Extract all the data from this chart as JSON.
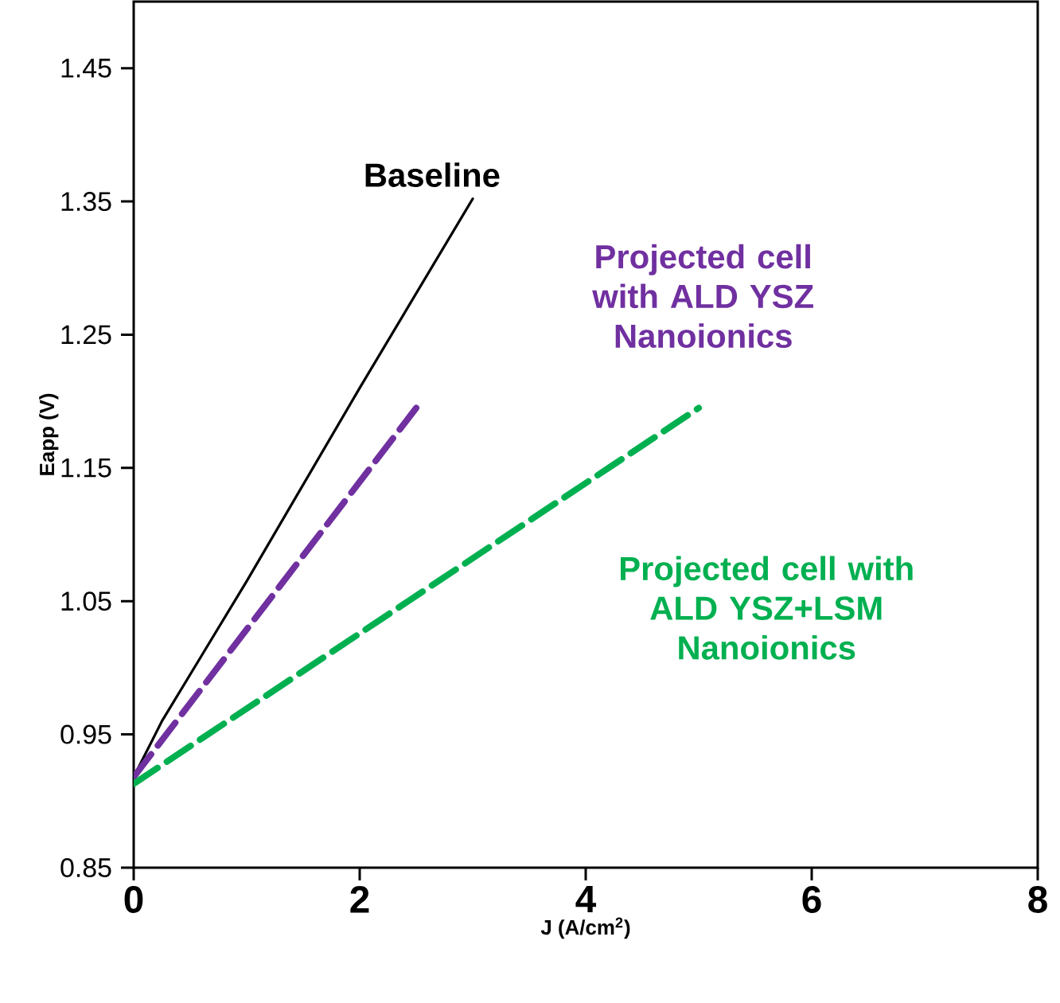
{
  "chart_data": {
    "type": "line",
    "xlabel": "J (A/cm$^{2}$)",
    "ylabel": "Eapp (V)",
    "xlim": [
      0,
      8
    ],
    "ylim": [
      0.85,
      1.5
    ],
    "xticks": [
      0,
      2,
      4,
      6,
      8
    ],
    "yticks": [
      0.85,
      0.95,
      1.05,
      1.15,
      1.25,
      1.35,
      1.45
    ],
    "series": [
      {
        "name": "Baseline",
        "color": "#000000",
        "line_style": "solid",
        "x": [
          0,
          0.25,
          1,
          2,
          3
        ],
        "values": [
          0.918,
          0.96,
          1.065,
          1.21,
          1.352
        ]
      },
      {
        "name": "Projected cell with ALD YSZ Nanoionics",
        "color": "#7030a0",
        "line_style": "dashed",
        "x": [
          0,
          2.5
        ],
        "values": [
          0.918,
          1.195
        ]
      },
      {
        "name": "Projected cell with ALD YSZ+LSM Nanoionics",
        "color": "#00b050",
        "line_style": "dashed",
        "x": [
          0,
          5
        ],
        "values": [
          0.913,
          1.195
        ]
      }
    ]
  }
}
